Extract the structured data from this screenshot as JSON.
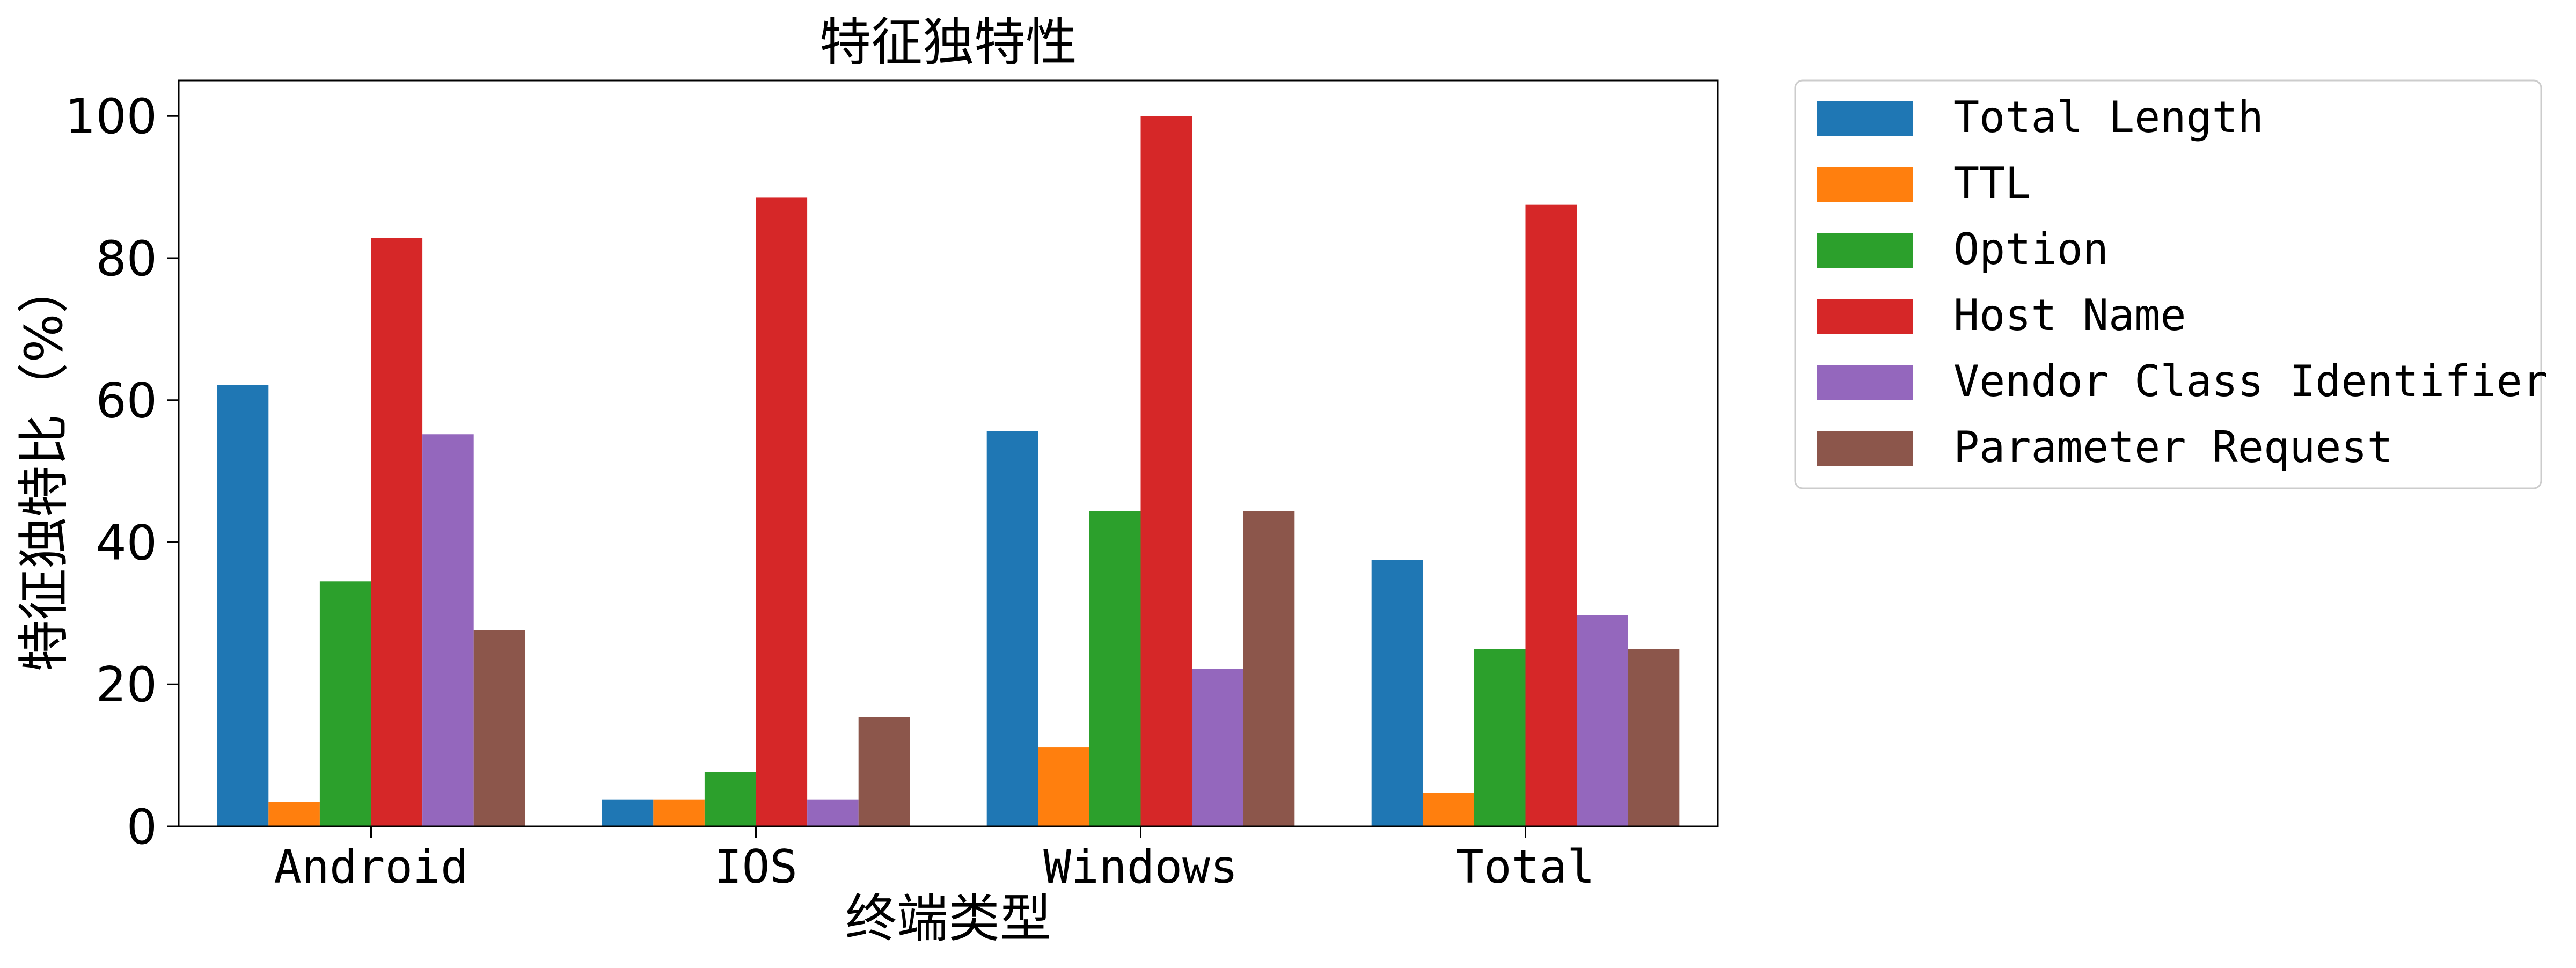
{
  "chart_data": {
    "type": "bar",
    "title": "特征独特性",
    "xlabel": "终端类型",
    "ylabel": "特征独特比（%）",
    "ylim": [
      0,
      105
    ],
    "yticks": [
      0,
      20,
      40,
      60,
      80,
      100
    ],
    "grid": false,
    "legend_position": "outside-right-top",
    "categories": [
      "Android",
      "IOS",
      "Windows",
      "Total"
    ],
    "series": [
      {
        "name": "Total Length",
        "color": "#1f77b4",
        "values": [
          62.1,
          3.8,
          55.6,
          37.5
        ]
      },
      {
        "name": "TTL",
        "color": "#ff7f0e",
        "values": [
          3.4,
          3.8,
          11.1,
          4.7
        ]
      },
      {
        "name": "Option",
        "color": "#2ca02c",
        "values": [
          34.5,
          7.7,
          44.4,
          25.0
        ]
      },
      {
        "name": "Host Name",
        "color": "#d62728",
        "values": [
          82.8,
          88.5,
          100.0,
          87.5
        ]
      },
      {
        "name": "Vendor Class Identifier",
        "color": "#9467bd",
        "values": [
          55.2,
          3.8,
          22.2,
          29.7
        ]
      },
      {
        "name": "Parameter Request",
        "color": "#8c564b",
        "values": [
          27.6,
          15.4,
          44.4,
          25.0
        ]
      }
    ]
  }
}
